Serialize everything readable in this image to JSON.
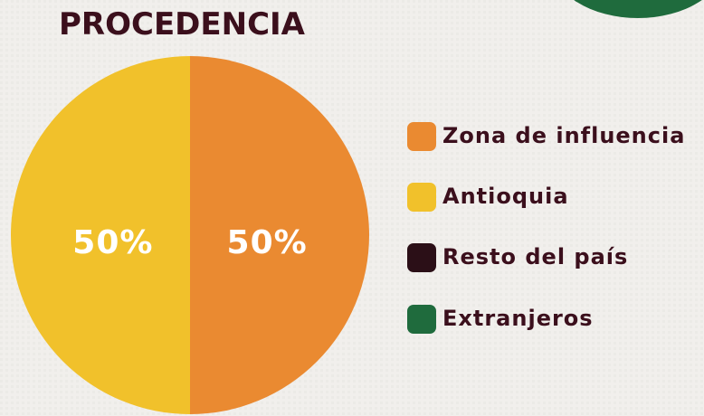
{
  "chart_data": {
    "type": "pie",
    "title": "PROCEDENCIA",
    "categories": [
      "Zona de influencia",
      "Antioquia",
      "Resto del país",
      "Extranjeros"
    ],
    "values": [
      50,
      50,
      0,
      0
    ],
    "value_labels": [
      "50%",
      "50%",
      null,
      null
    ],
    "colors": [
      "#ea8a31",
      "#f1c12b",
      "#2b0f17",
      "#1f6b3d"
    ]
  }
}
